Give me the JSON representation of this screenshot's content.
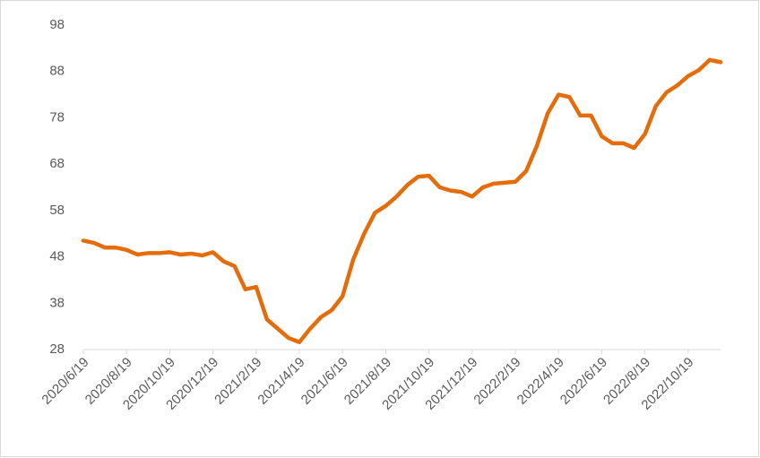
{
  "chart_data": {
    "type": "line",
    "categories": [
      "2020/6/19",
      null,
      null,
      null,
      "2020/8/19",
      null,
      null,
      null,
      "2020/10/19",
      null,
      null,
      null,
      "2020/12/19",
      null,
      null,
      null,
      "2021/2/19",
      null,
      null,
      null,
      "2021/4/19",
      null,
      null,
      null,
      "2021/6/19",
      null,
      null,
      null,
      "2021/8/19",
      null,
      null,
      null,
      "2021/10/19",
      null,
      null,
      null,
      "2021/12/19",
      null,
      null,
      null,
      "2022/2/19",
      null,
      null,
      null,
      "2022/4/19",
      null,
      null,
      null,
      "2022/6/19",
      null,
      null,
      null,
      "2022/8/19",
      null,
      null,
      null,
      "2022/10/19",
      null,
      null,
      null
    ],
    "series": [
      {
        "color": "#e46c0a",
        "values": [
          51.5,
          51,
          50,
          50,
          49.5,
          48.5,
          48.8,
          48.8,
          49,
          48.5,
          48.7,
          48.3,
          49,
          47,
          46,
          41,
          41.5,
          34.5,
          32.5,
          30.5,
          29.6,
          32.5,
          35,
          36.5,
          39.5,
          47.5,
          53,
          57.5,
          59,
          61,
          63.5,
          65.3,
          65.5,
          63,
          62.3,
          62,
          61,
          63,
          63.8,
          64,
          64.2,
          66.5,
          72,
          79,
          83,
          82.5,
          78.5,
          78.5,
          74,
          72.5,
          72.5,
          71.5,
          74.5,
          80.5,
          83.5,
          85,
          87,
          88.3,
          90.5,
          90
        ]
      }
    ],
    "ylim": [
      28,
      98
    ],
    "yticks": [
      28,
      38,
      48,
      58,
      68,
      78,
      88,
      98
    ],
    "grid": false
  }
}
